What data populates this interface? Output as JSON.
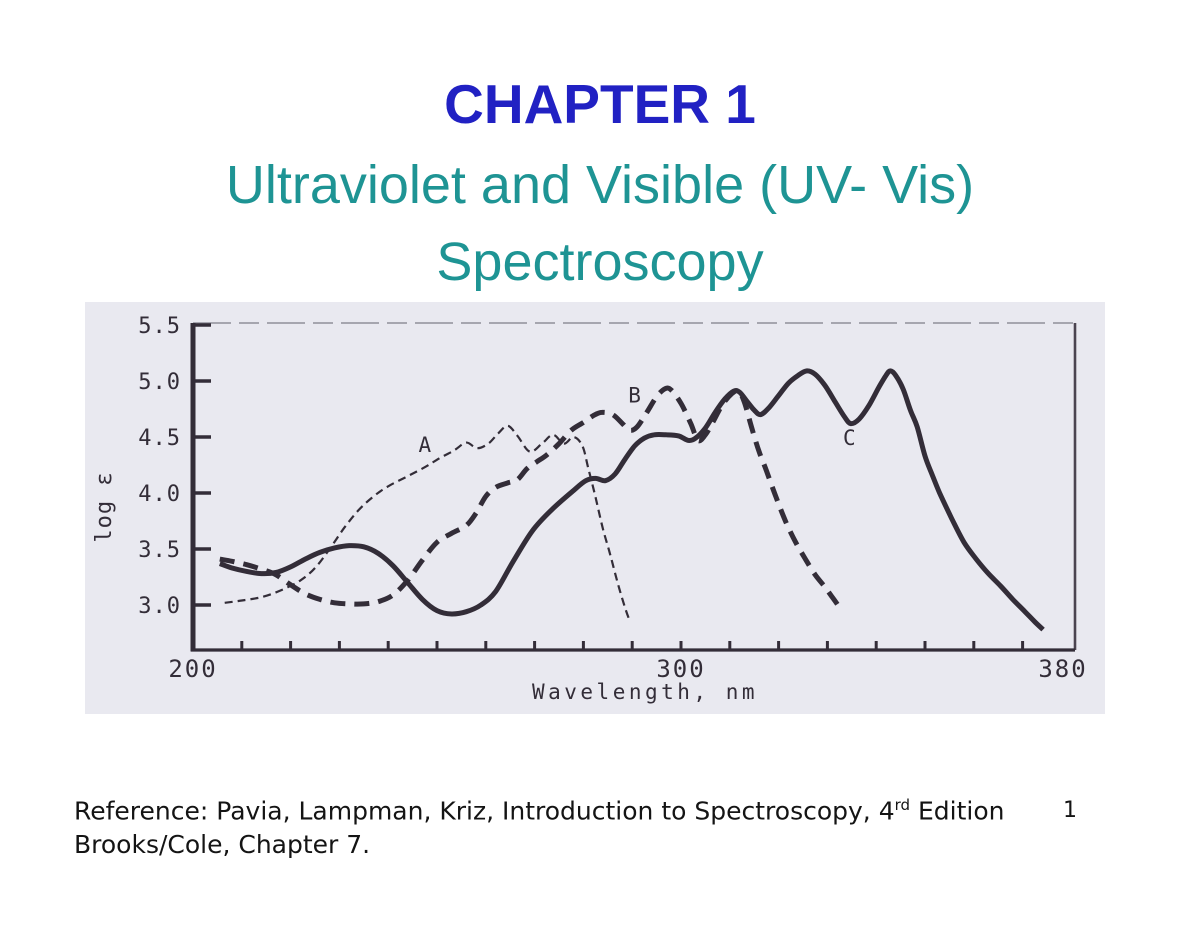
{
  "slide": {
    "title": "CHAPTER 1",
    "subtitle1": "Ultraviolet and Visible (UV- Vis)",
    "subtitle2": "Spectroscopy",
    "page_number": "1",
    "reference": {
      "line1_prefix": "Reference: Pavia, Lampman, Kriz, Introduction to Spectroscopy, 4",
      "line1_sup": "rd",
      "line1_suffix": " Edition",
      "line2": "Brooks/Cole, Chapter 7."
    },
    "colors": {
      "title_blue": "#2121c3",
      "subtitle_teal": "#1e9494",
      "figure_background": "#e9e9f0",
      "ink": "#332d38"
    }
  },
  "chart_data": {
    "type": "line",
    "title": "",
    "xlabel": "Wavelength, nm",
    "ylabel": "log ε",
    "x_axis": {
      "min": 200,
      "max": 380,
      "major_labels": [
        200,
        300,
        380
      ],
      "minor_tick_step": 10
    },
    "y_axis": {
      "min": 3.0,
      "max": 5.5,
      "ticks": [
        5.5,
        5.0,
        4.5,
        4.0,
        3.5,
        3.0
      ]
    },
    "grid": false,
    "legend": "inline-letter-labels",
    "series": [
      {
        "name": "A",
        "style": "dashed-thin",
        "label_pos": {
          "x": 247.5,
          "y": 4.43
        },
        "points": [
          [
            206.5,
            3.02
          ],
          [
            210,
            3.04
          ],
          [
            214,
            3.07
          ],
          [
            218,
            3.13
          ],
          [
            222,
            3.22
          ],
          [
            225,
            3.33
          ],
          [
            228,
            3.5
          ],
          [
            231,
            3.69
          ],
          [
            234,
            3.85
          ],
          [
            237,
            3.97
          ],
          [
            240,
            4.06
          ],
          [
            244,
            4.15
          ],
          [
            247.5,
            4.23
          ],
          [
            250.5,
            4.31
          ],
          [
            253.5,
            4.38
          ],
          [
            256,
            4.45
          ],
          [
            258.2,
            4.4
          ],
          [
            260.5,
            4.44
          ],
          [
            262.5,
            4.53
          ],
          [
            264.5,
            4.6
          ],
          [
            266.5,
            4.51
          ],
          [
            269,
            4.37
          ],
          [
            271.5,
            4.44
          ],
          [
            273.8,
            4.52
          ],
          [
            276,
            4.44
          ],
          [
            278,
            4.5
          ],
          [
            279.8,
            4.42
          ],
          [
            281,
            4.22
          ],
          [
            282.5,
            3.96
          ],
          [
            284,
            3.68
          ],
          [
            285.5,
            3.45
          ],
          [
            287,
            3.2
          ],
          [
            288.5,
            2.98
          ],
          [
            289.3,
            2.88
          ]
        ]
      },
      {
        "name": "B",
        "style": "dashed-thick",
        "label_pos": {
          "x": 290.5,
          "y": 4.87
        },
        "points": [
          [
            205.5,
            3.41
          ],
          [
            208,
            3.39
          ],
          [
            211,
            3.36
          ],
          [
            214,
            3.32
          ],
          [
            217,
            3.27
          ],
          [
            220,
            3.18
          ],
          [
            223,
            3.1
          ],
          [
            226,
            3.05
          ],
          [
            229,
            3.02
          ],
          [
            232,
            3.01
          ],
          [
            235,
            3.01
          ],
          [
            238,
            3.03
          ],
          [
            241,
            3.09
          ],
          [
            244,
            3.22
          ],
          [
            247,
            3.4
          ],
          [
            250,
            3.56
          ],
          [
            253,
            3.64
          ],
          [
            256,
            3.71
          ],
          [
            258,
            3.82
          ],
          [
            260,
            3.97
          ],
          [
            262,
            4.05
          ],
          [
            264.5,
            4.09
          ],
          [
            266.5,
            4.12
          ],
          [
            268.5,
            4.22
          ],
          [
            270.5,
            4.28
          ],
          [
            272.5,
            4.34
          ],
          [
            275,
            4.44
          ],
          [
            277.5,
            4.56
          ],
          [
            280,
            4.63
          ],
          [
            282,
            4.69
          ],
          [
            283.8,
            4.72
          ],
          [
            286,
            4.7
          ],
          [
            288,
            4.62
          ],
          [
            289.5,
            4.56
          ],
          [
            291,
            4.59
          ],
          [
            293,
            4.72
          ],
          [
            295,
            4.86
          ],
          [
            296.7,
            4.93
          ],
          [
            298,
            4.92
          ],
          [
            300,
            4.8
          ],
          [
            302,
            4.62
          ],
          [
            303.5,
            4.47
          ],
          [
            305,
            4.52
          ],
          [
            306.5,
            4.63
          ],
          [
            308.5,
            4.79
          ],
          [
            310.5,
            4.89
          ],
          [
            311.8,
            4.91
          ],
          [
            313,
            4.81
          ],
          [
            314.5,
            4.58
          ],
          [
            316,
            4.37
          ],
          [
            317.5,
            4.2
          ],
          [
            319.5,
            3.96
          ],
          [
            321.5,
            3.74
          ],
          [
            323.5,
            3.56
          ],
          [
            325.5,
            3.41
          ],
          [
            327.5,
            3.27
          ],
          [
            329.5,
            3.16
          ],
          [
            331,
            3.07
          ],
          [
            332.3,
            2.99
          ]
        ]
      },
      {
        "name": "C",
        "style": "solid-thick",
        "label_pos": {
          "x": 334.5,
          "y": 4.49
        },
        "points": [
          [
            205.5,
            3.37
          ],
          [
            208,
            3.33
          ],
          [
            211,
            3.3
          ],
          [
            214,
            3.28
          ],
          [
            217,
            3.29
          ],
          [
            220,
            3.34
          ],
          [
            223,
            3.41
          ],
          [
            226,
            3.47
          ],
          [
            229,
            3.51
          ],
          [
            232,
            3.53
          ],
          [
            235,
            3.52
          ],
          [
            238,
            3.46
          ],
          [
            241,
            3.35
          ],
          [
            244,
            3.2
          ],
          [
            247,
            3.05
          ],
          [
            250,
            2.95
          ],
          [
            253,
            2.92
          ],
          [
            256,
            2.94
          ],
          [
            259,
            3.0
          ],
          [
            262,
            3.12
          ],
          [
            265.5,
            3.38
          ],
          [
            269.5,
            3.66
          ],
          [
            273.5,
            3.85
          ],
          [
            277.9,
            4.02
          ],
          [
            280.5,
            4.11
          ],
          [
            282.5,
            4.13
          ],
          [
            284.5,
            4.11
          ],
          [
            286.5,
            4.17
          ],
          [
            288.5,
            4.3
          ],
          [
            290.5,
            4.42
          ],
          [
            292.5,
            4.49
          ],
          [
            294.5,
            4.52
          ],
          [
            297,
            4.52
          ],
          [
            299.5,
            4.51
          ],
          [
            301.5,
            4.47
          ],
          [
            303,
            4.49
          ],
          [
            305,
            4.58
          ],
          [
            307,
            4.72
          ],
          [
            309,
            4.84
          ],
          [
            310.8,
            4.91
          ],
          [
            312,
            4.9
          ],
          [
            313.5,
            4.82
          ],
          [
            315,
            4.74
          ],
          [
            316.3,
            4.7
          ],
          [
            318,
            4.76
          ],
          [
            320,
            4.87
          ],
          [
            322,
            4.98
          ],
          [
            324,
            5.05
          ],
          [
            325.8,
            5.09
          ],
          [
            327.5,
            5.06
          ],
          [
            329.5,
            4.96
          ],
          [
            331.5,
            4.82
          ],
          [
            333.5,
            4.68
          ],
          [
            334.8,
            4.62
          ],
          [
            336.5,
            4.66
          ],
          [
            338.5,
            4.78
          ],
          [
            340.5,
            4.94
          ],
          [
            342,
            5.05
          ],
          [
            342.9,
            5.09
          ],
          [
            344,
            5.05
          ],
          [
            345.5,
            4.93
          ],
          [
            347,
            4.74
          ],
          [
            348.4,
            4.59
          ],
          [
            350,
            4.33
          ],
          [
            351.5,
            4.16
          ],
          [
            353,
            4.0
          ],
          [
            355.5,
            3.77
          ],
          [
            358,
            3.56
          ],
          [
            360.5,
            3.41
          ],
          [
            363,
            3.28
          ],
          [
            365.5,
            3.17
          ],
          [
            368,
            3.05
          ],
          [
            370.5,
            2.94
          ],
          [
            372.5,
            2.85
          ],
          [
            374.2,
            2.78
          ]
        ]
      }
    ]
  }
}
